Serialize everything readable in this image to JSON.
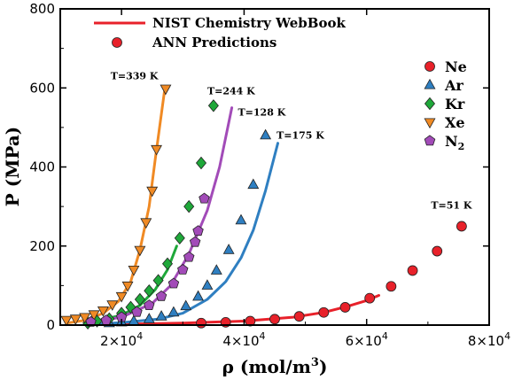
{
  "chart_data": {
    "type": "scatter",
    "xlabel": "ρ (mol/m",
    "xlabel_sup": "3",
    "xlabel_end": ")",
    "ylabel": "P (MPa)",
    "xlim": [
      10000,
      80000
    ],
    "ylim": [
      0,
      800
    ],
    "x_ticks": [
      {
        "value": 20000,
        "base": "2×10",
        "exp": "4"
      },
      {
        "value": 40000,
        "base": "4×10",
        "exp": "4"
      },
      {
        "value": 60000,
        "base": "6×10",
        "exp": "4"
      },
      {
        "value": 80000,
        "base": "8×10",
        "exp": "4"
      }
    ],
    "y_ticks": [
      0,
      200,
      400,
      600,
      800
    ],
    "legend_top": [
      {
        "name": "NIST Chemistry WebBook",
        "kind": "line",
        "color": "#e8212a"
      },
      {
        "name": "ANN Predictions",
        "kind": "marker",
        "color": "#e8212a"
      }
    ],
    "legend_right": [
      {
        "name": "Ne",
        "marker": "circle",
        "color": "#e8212a"
      },
      {
        "name": "Ar",
        "marker": "triangle-up",
        "color": "#2f7fc1"
      },
      {
        "name": "Kr",
        "marker": "diamond",
        "color": "#1fa83a"
      },
      {
        "name": "Xe",
        "marker": "triangle-down",
        "color": "#f08a24"
      },
      {
        "name": "N",
        "sub": "2",
        "marker": "pentagon",
        "color": "#a24bb8"
      }
    ],
    "annotations": [
      {
        "text": "T=339 K",
        "x": 18200,
        "y": 622
      },
      {
        "text": "T=244 K",
        "x": 34000,
        "y": 584
      },
      {
        "text": "T=128 K",
        "x": 39000,
        "y": 530
      },
      {
        "text": "T=175 K",
        "x": 45300,
        "y": 472
      },
      {
        "text": "T=51 K",
        "x": 70500,
        "y": 295
      }
    ],
    "series": [
      {
        "name": "Ne",
        "color": "#e8212a",
        "marker": "circle",
        "curve": [
          [
            14000,
            1
          ],
          [
            30000,
            5
          ],
          [
            40000,
            10
          ],
          [
            48000,
            20
          ],
          [
            53000,
            32
          ],
          [
            57000,
            48
          ],
          [
            60000,
            62
          ],
          [
            62000,
            75
          ]
        ],
        "points": [
          [
            33000,
            5
          ],
          [
            37000,
            7
          ],
          [
            41000,
            10
          ],
          [
            45000,
            15
          ],
          [
            49000,
            22
          ],
          [
            53000,
            32
          ],
          [
            56500,
            45
          ],
          [
            60500,
            68
          ],
          [
            64000,
            98
          ],
          [
            67500,
            138
          ],
          [
            71500,
            187
          ],
          [
            75500,
            250
          ]
        ]
      },
      {
        "name": "Ar",
        "color": "#2f7fc1",
        "marker": "triangle-up",
        "curve": [
          [
            14000,
            2
          ],
          [
            20000,
            6
          ],
          [
            26000,
            15
          ],
          [
            30000,
            30
          ],
          [
            34000,
            65
          ],
          [
            37000,
            110
          ],
          [
            39500,
            170
          ],
          [
            41500,
            240
          ],
          [
            43500,
            340
          ],
          [
            45500,
            460
          ]
        ],
        "points": [
          [
            18000,
            5
          ],
          [
            20000,
            7
          ],
          [
            22000,
            10
          ],
          [
            24500,
            15
          ],
          [
            26500,
            22
          ],
          [
            28500,
            32
          ],
          [
            30500,
            48
          ],
          [
            32500,
            72
          ],
          [
            34000,
            100
          ],
          [
            35500,
            138
          ],
          [
            37500,
            190
          ],
          [
            39500,
            265
          ],
          [
            41500,
            355
          ],
          [
            43500,
            480
          ]
        ]
      },
      {
        "name": "Kr",
        "color": "#1fa83a",
        "marker": "diamond",
        "curve": [
          [
            14000,
            3
          ],
          [
            20000,
            25
          ],
          [
            23000,
            50
          ],
          [
            25500,
            90
          ],
          [
            27500,
            140
          ],
          [
            29000,
            200
          ]
        ],
        "points": [
          [
            14500,
            5
          ],
          [
            16000,
            10
          ],
          [
            18000,
            16
          ],
          [
            20000,
            30
          ],
          [
            21500,
            45
          ],
          [
            23000,
            65
          ],
          [
            24500,
            87
          ],
          [
            26000,
            113
          ],
          [
            27500,
            155
          ],
          [
            29500,
            220
          ],
          [
            31000,
            300
          ],
          [
            33000,
            410
          ],
          [
            35000,
            555
          ]
        ]
      },
      {
        "name": "Xe",
        "color": "#f08a24",
        "marker": "triangle-down",
        "curve": [
          [
            11000,
            5
          ],
          [
            14000,
            12
          ],
          [
            17000,
            30
          ],
          [
            19500,
            60
          ],
          [
            21500,
            110
          ],
          [
            23000,
            190
          ],
          [
            24500,
            300
          ],
          [
            25500,
            420
          ],
          [
            27000,
            590
          ]
        ],
        "points": [
          [
            11000,
            13
          ],
          [
            12500,
            16
          ],
          [
            14000,
            20
          ],
          [
            15500,
            27
          ],
          [
            17000,
            37
          ],
          [
            18500,
            52
          ],
          [
            20000,
            73
          ],
          [
            21000,
            100
          ],
          [
            22000,
            140
          ],
          [
            23000,
            190
          ],
          [
            24000,
            260
          ],
          [
            25000,
            340
          ],
          [
            25700,
            445
          ],
          [
            27200,
            598
          ]
        ]
      },
      {
        "name": "N2",
        "color": "#a24bb8",
        "marker": "pentagon",
        "curve": [
          [
            14000,
            5
          ],
          [
            20000,
            20
          ],
          [
            25000,
            55
          ],
          [
            28000,
            100
          ],
          [
            31000,
            180
          ],
          [
            34000,
            290
          ],
          [
            36000,
            400
          ],
          [
            38000,
            550
          ]
        ],
        "points": [
          [
            15000,
            8
          ],
          [
            17500,
            12
          ],
          [
            20000,
            20
          ],
          [
            22500,
            33
          ],
          [
            24500,
            50
          ],
          [
            26500,
            73
          ],
          [
            28500,
            105
          ],
          [
            30000,
            140
          ],
          [
            31000,
            172
          ],
          [
            32000,
            210
          ],
          [
            32500,
            238
          ],
          [
            33500,
            320
          ]
        ]
      }
    ]
  }
}
